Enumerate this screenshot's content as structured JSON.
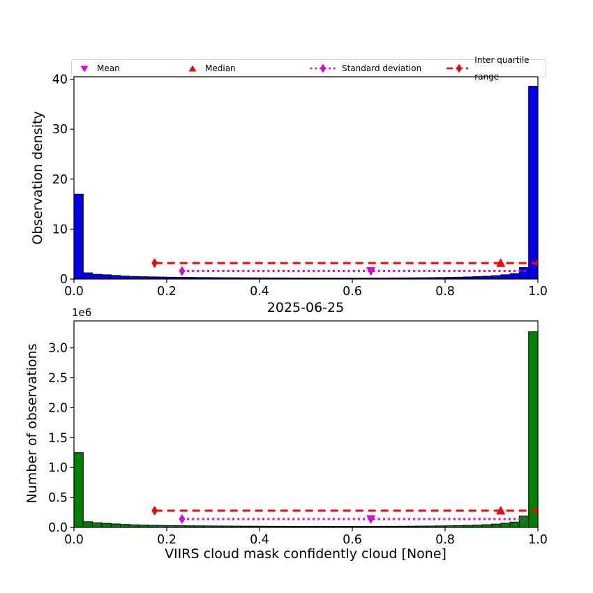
{
  "figure": {
    "background": "#ffffff"
  },
  "legend": {
    "entries": [
      {
        "label": "Mean",
        "marker": "triangle-down",
        "color": "#dd00dd",
        "line": "none"
      },
      {
        "label": "Median",
        "marker": "triangle-up",
        "color": "#ff0000",
        "line": "none"
      },
      {
        "label": "Standard deviation",
        "marker": "thin-diamond",
        "color": "#dd00dd",
        "line": "dotted"
      },
      {
        "label": "Inter quartile range",
        "marker": "thin-diamond",
        "color": "#ff0000",
        "line": "dashed"
      }
    ]
  },
  "chart_data": [
    {
      "type": "bar",
      "subplot": "top",
      "ylabel": "Observation density",
      "bar_color": "#0000ee",
      "bar_edge_color": "#000000",
      "bin_start": 0.0,
      "bin_width": 0.02,
      "values": [
        17.0,
        1.25,
        0.95,
        0.85,
        0.72,
        0.6,
        0.52,
        0.47,
        0.43,
        0.4,
        0.37,
        0.35,
        0.33,
        0.31,
        0.3,
        0.28,
        0.27,
        0.26,
        0.25,
        0.25,
        0.24,
        0.23,
        0.23,
        0.22,
        0.22,
        0.21,
        0.21,
        0.21,
        0.21,
        0.21,
        0.21,
        0.21,
        0.22,
        0.22,
        0.23,
        0.24,
        0.25,
        0.26,
        0.28,
        0.3,
        0.33,
        0.37,
        0.42,
        0.48,
        0.56,
        0.68,
        0.85,
        1.1,
        2.3,
        38.6
      ],
      "xlim": [
        0.0,
        1.0
      ],
      "ylim": [
        0.0,
        40.5
      ],
      "xticks": [
        0.0,
        0.2,
        0.4,
        0.6,
        0.8,
        1.0
      ],
      "xtick_labels": [
        "0.0",
        "0.2",
        "0.4",
        "0.6",
        "0.8",
        "1.0"
      ],
      "yticks": [
        0,
        10,
        20,
        30,
        40
      ],
      "ytick_labels": [
        "0",
        "10",
        "20",
        "30",
        "40"
      ],
      "grid": false,
      "stats": {
        "mean_x": 0.64,
        "median_x": 0.92,
        "std_range": {
          "x1": 0.233,
          "x2": 0.978,
          "y": 1.6
        },
        "iqr_range": {
          "x1": 0.174,
          "x2": 1.0,
          "y": 3.2
        }
      }
    },
    {
      "type": "bar",
      "subplot": "bottom",
      "title": "2025-06-25",
      "xlabel": "VIIRS cloud mask confidently cloud [None]",
      "ylabel": "Number of observations",
      "offset_text": "1e6",
      "bar_color": "#008000",
      "bar_edge_color": "#000000",
      "bin_start": 0.0,
      "bin_width": 0.02,
      "values_unit": "1e6",
      "values": [
        1.25,
        0.095,
        0.078,
        0.068,
        0.058,
        0.05,
        0.044,
        0.04,
        0.036,
        0.033,
        0.031,
        0.029,
        0.027,
        0.026,
        0.025,
        0.024,
        0.023,
        0.022,
        0.021,
        0.021,
        0.02,
        0.019,
        0.019,
        0.018,
        0.018,
        0.018,
        0.017,
        0.017,
        0.017,
        0.017,
        0.017,
        0.018,
        0.018,
        0.019,
        0.019,
        0.02,
        0.021,
        0.022,
        0.023,
        0.025,
        0.027,
        0.03,
        0.034,
        0.039,
        0.046,
        0.056,
        0.07,
        0.09,
        0.19,
        3.27
      ],
      "xlim": [
        0.0,
        1.0
      ],
      "ylim": [
        0.0,
        3.45
      ],
      "xticks": [
        0.0,
        0.2,
        0.4,
        0.6,
        0.8,
        1.0
      ],
      "xtick_labels": [
        "0.0",
        "0.2",
        "0.4",
        "0.6",
        "0.8",
        "1.0"
      ],
      "yticks": [
        0.0,
        0.5,
        1.0,
        1.5,
        2.0,
        2.5,
        3.0
      ],
      "ytick_labels": [
        "0.0",
        "0.5",
        "1.0",
        "1.5",
        "2.0",
        "2.5",
        "3.0"
      ],
      "grid": false,
      "stats": {
        "mean_x": 0.64,
        "median_x": 0.92,
        "std_range": {
          "x1": 0.233,
          "x2": 0.978,
          "y": 0.14
        },
        "iqr_range": {
          "x1": 0.174,
          "x2": 1.0,
          "y": 0.28
        }
      }
    }
  ],
  "colors": {
    "mean": "#dd00dd",
    "median": "#ff0000",
    "std": "#dd00dd",
    "iqr": "#ff0000",
    "spine": "#000000"
  }
}
